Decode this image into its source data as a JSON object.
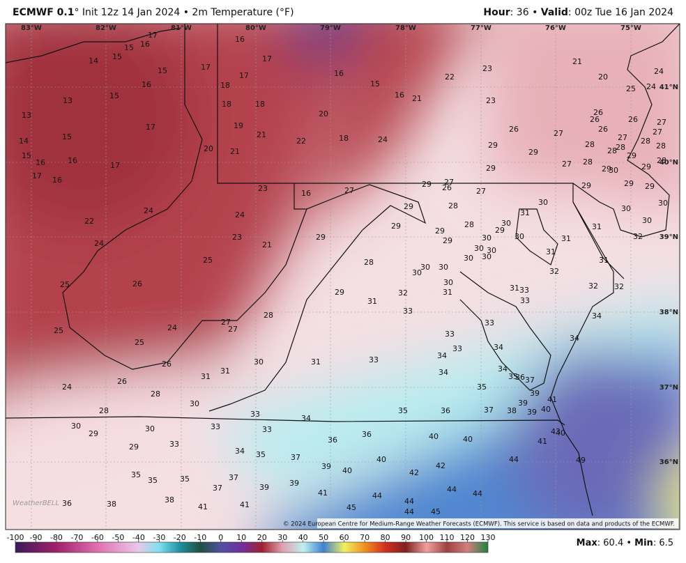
{
  "header": {
    "title": "ECMWF 0.1",
    "subtitle": "° Init 12z 14 Jan 2024 • 2m Temperature (°F)",
    "hour_label": "Hour",
    "hour_value": ": 36 • ",
    "valid_label": "Valid",
    "valid_value": ": 00z Tue 16 Jan 2024"
  },
  "map": {
    "longitude_labels": [
      "83°W",
      "82°W",
      "81°W",
      "80°W",
      "79°W",
      "78°W",
      "77°W",
      "76°W",
      "75°W"
    ],
    "latitude_labels": [
      "41°N",
      "40°N",
      "39°N",
      "38°N",
      "37°N",
      "36°N"
    ],
    "values": [
      17,
      16,
      15,
      16,
      15,
      14,
      17,
      15,
      17,
      17,
      16,
      15,
      16,
      21,
      22,
      23,
      21,
      20,
      24,
      25,
      24,
      16,
      18,
      13,
      15,
      18,
      18,
      13,
      17,
      19,
      20,
      23,
      26,
      26,
      26,
      27,
      27,
      21,
      14,
      15,
      18,
      24,
      26,
      27,
      26,
      27,
      28,
      28,
      20,
      21,
      22,
      29,
      29,
      28,
      28,
      28,
      29,
      28,
      15,
      16,
      16,
      17,
      29,
      27,
      28,
      29,
      30,
      29,
      17,
      16,
      23,
      16,
      27,
      29,
      27,
      26,
      27,
      29,
      29,
      29,
      30,
      29,
      28,
      30,
      24,
      24,
      22,
      29,
      28,
      30,
      31,
      30,
      30,
      31,
      24,
      23,
      21,
      29,
      29,
      29,
      30,
      29,
      30,
      30,
      30,
      31,
      32,
      30,
      30,
      31,
      25,
      28,
      30,
      30,
      30,
      32,
      31,
      25,
      26,
      30,
      31,
      31,
      33,
      32,
      32,
      29,
      32,
      31,
      33,
      33,
      34,
      25,
      24,
      28,
      27,
      27,
      33,
      33,
      33,
      34,
      25,
      34,
      34,
      30,
      31,
      33,
      26,
      34,
      31,
      31,
      34,
      35,
      36,
      37,
      26,
      24,
      35,
      39,
      28,
      30,
      41,
      28,
      35,
      36,
      37,
      38,
      39,
      39,
      40,
      33,
      34,
      30,
      33,
      30,
      33,
      29,
      43,
      40,
      40,
      40,
      36,
      36,
      33,
      29,
      34,
      35,
      37,
      41,
      40,
      44,
      49,
      39,
      42,
      40,
      42,
      35,
      35,
      35,
      37,
      37,
      39,
      39,
      44,
      41,
      44,
      44,
      36,
      38,
      38,
      41,
      41,
      45,
      44,
      44,
      45
    ],
    "logo": "WeatherBELL",
    "copyright": "© 2024 European Centre for Medium-Range Weather Forecasts (ECMWF). This service is based on data and products of the ECMWF."
  },
  "colorbar": {
    "ticks": [
      -100,
      -90,
      -80,
      -70,
      -60,
      -50,
      -40,
      -30,
      -20,
      -10,
      0,
      10,
      20,
      30,
      40,
      50,
      60,
      70,
      80,
      90,
      100,
      110,
      120,
      130
    ]
  },
  "footer": {
    "max_label": "Max",
    "max_value": ": 60.4 • ",
    "min_label": "Min",
    "min_value": ": 6.5"
  }
}
